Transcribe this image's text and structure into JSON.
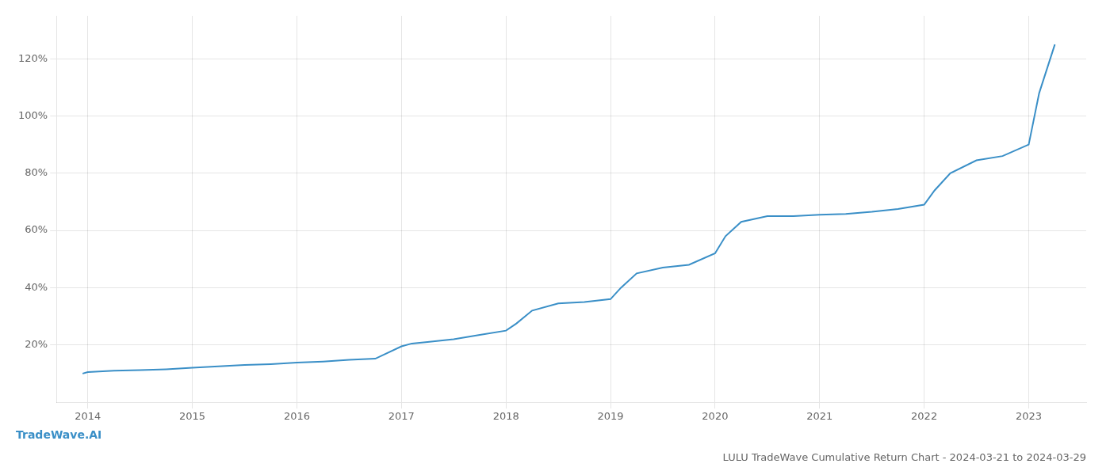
{
  "chart_data": {
    "type": "line",
    "title": "LULU TradeWave Cumulative Return Chart - 2024-03-21 to 2024-03-29",
    "annotations": [
      "TradeWave.AI"
    ],
    "x": [
      2013.95,
      2014.0,
      2014.25,
      2014.5,
      2014.75,
      2015.0,
      2015.25,
      2015.5,
      2015.75,
      2016.0,
      2016.25,
      2016.5,
      2016.75,
      2017.0,
      2017.1,
      2017.25,
      2017.5,
      2017.75,
      2018.0,
      2018.1,
      2018.25,
      2018.5,
      2018.75,
      2019.0,
      2019.1,
      2019.25,
      2019.5,
      2019.75,
      2020.0,
      2020.1,
      2020.25,
      2020.5,
      2020.75,
      2021.0,
      2021.25,
      2021.5,
      2021.75,
      2022.0,
      2022.1,
      2022.25,
      2022.5,
      2022.75,
      2023.0,
      2023.1,
      2023.25
    ],
    "values": [
      10.0,
      10.5,
      11.0,
      11.2,
      11.5,
      12.0,
      12.5,
      13.0,
      13.3,
      13.8,
      14.2,
      14.8,
      15.2,
      19.5,
      20.5,
      21.0,
      22.0,
      23.5,
      25.0,
      27.5,
      32.0,
      34.5,
      35.0,
      36.0,
      40.0,
      45.0,
      47.0,
      48.0,
      52.0,
      58.0,
      63.0,
      65.0,
      65.0,
      65.5,
      65.8,
      66.5,
      67.5,
      69.0,
      74.0,
      80.0,
      84.5,
      86.0,
      90.0,
      108.0,
      125.0
    ],
    "color": "#3a8fc7",
    "xlim": [
      2013.7,
      2023.55
    ],
    "xticks": [
      2014,
      2015,
      2016,
      2017,
      2018,
      2019,
      2020,
      2021,
      2022,
      2023
    ],
    "ylim": [
      0,
      135
    ],
    "yticks": [
      {
        "value": 20,
        "label": "20%"
      },
      {
        "value": 40,
        "label": "40%"
      },
      {
        "value": 60,
        "label": "60%"
      },
      {
        "value": 80,
        "label": "80%"
      },
      {
        "value": 100,
        "label": "100%"
      },
      {
        "value": 120,
        "label": "120%"
      }
    ],
    "grid": true
  }
}
